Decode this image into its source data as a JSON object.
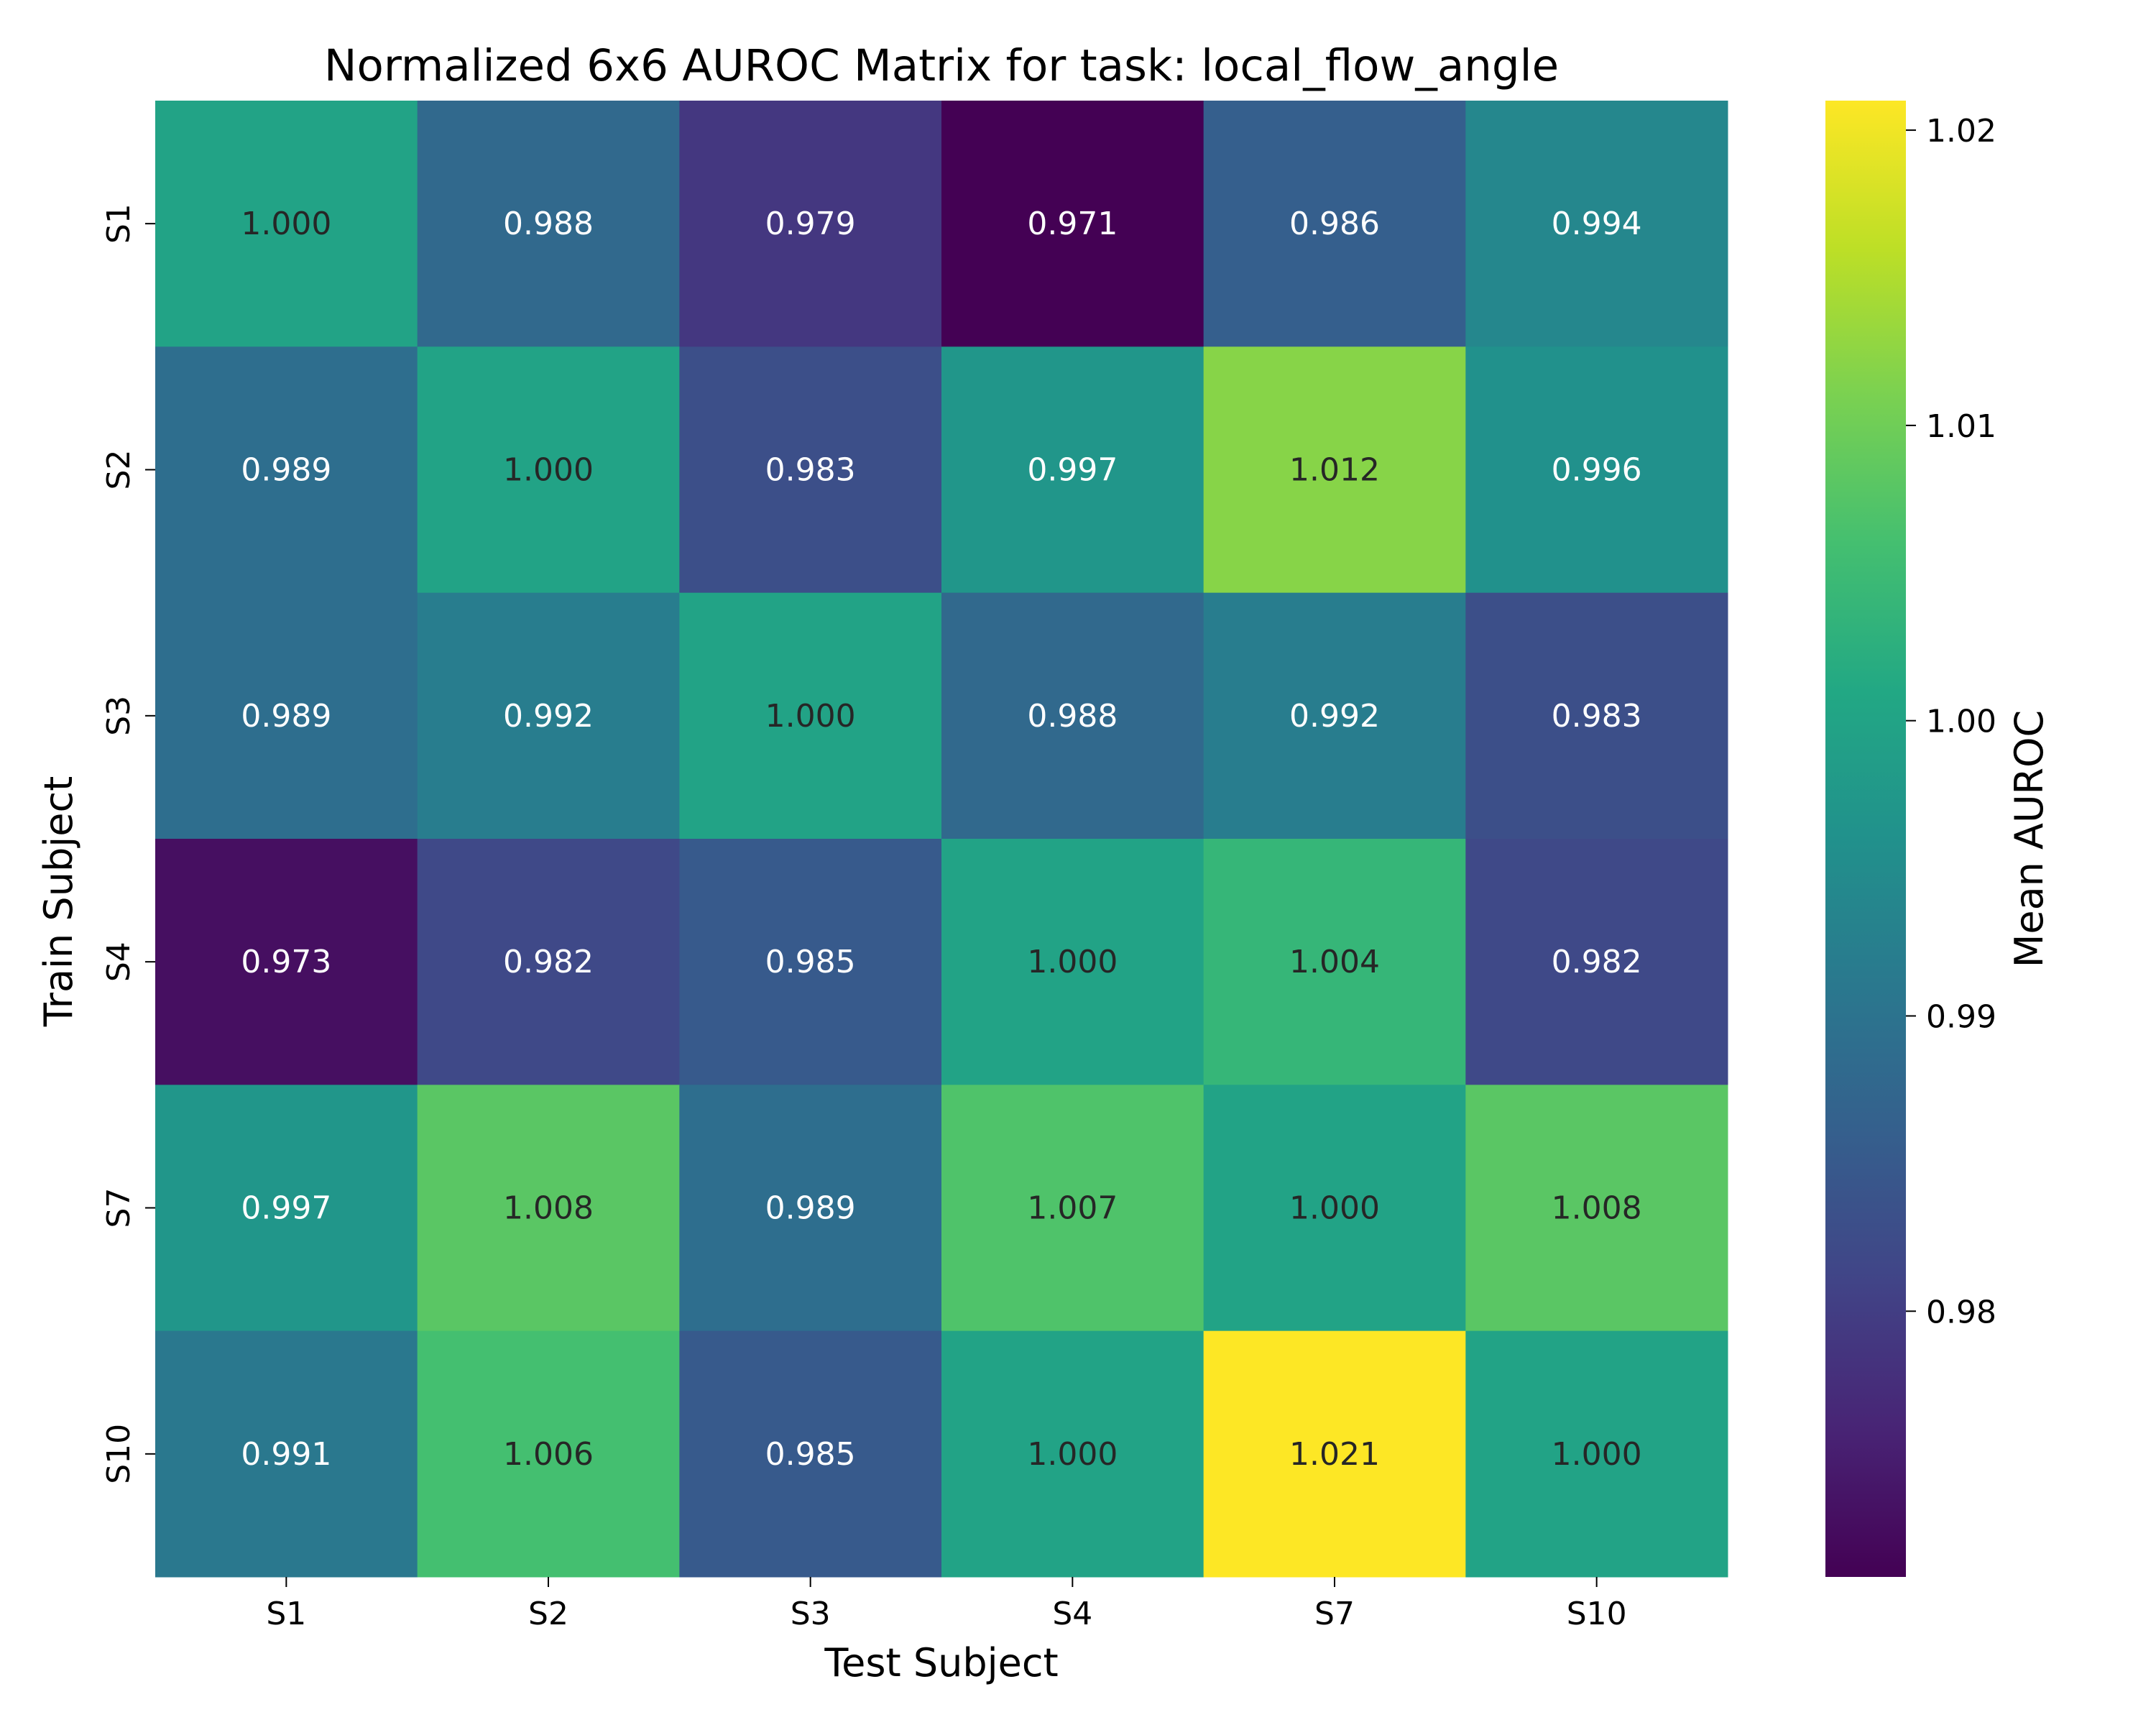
{
  "chart_data": {
    "type": "heatmap",
    "title": "Normalized 6x6 AUROC Matrix for task: local_flow_angle",
    "xlabel": "Test Subject",
    "ylabel": "Train Subject",
    "x_categories": [
      "S1",
      "S2",
      "S3",
      "S4",
      "S7",
      "S10"
    ],
    "y_categories": [
      "S1",
      "S2",
      "S3",
      "S4",
      "S7",
      "S10"
    ],
    "values": [
      [
        1.0,
        0.988,
        0.979,
        0.971,
        0.986,
        0.994
      ],
      [
        0.989,
        1.0,
        0.983,
        0.997,
        1.012,
        0.996
      ],
      [
        0.989,
        0.992,
        1.0,
        0.988,
        0.992,
        0.983
      ],
      [
        0.973,
        0.982,
        0.985,
        1.0,
        1.004,
        0.982
      ],
      [
        0.997,
        1.008,
        0.989,
        1.007,
        1.0,
        1.008
      ],
      [
        0.991,
        1.006,
        0.985,
        1.0,
        1.021,
        1.0
      ]
    ],
    "value_format": "0.000",
    "colormap": "viridis",
    "color_range": [
      0.971,
      1.021
    ],
    "colorbar": {
      "label": "Mean AUROC",
      "ticks": [
        0.98,
        0.99,
        1.0,
        1.01,
        1.02
      ],
      "tick_labels": [
        "0.98",
        "0.99",
        "1.00",
        "1.01",
        "1.02"
      ],
      "placement": "right"
    },
    "grid": false
  }
}
